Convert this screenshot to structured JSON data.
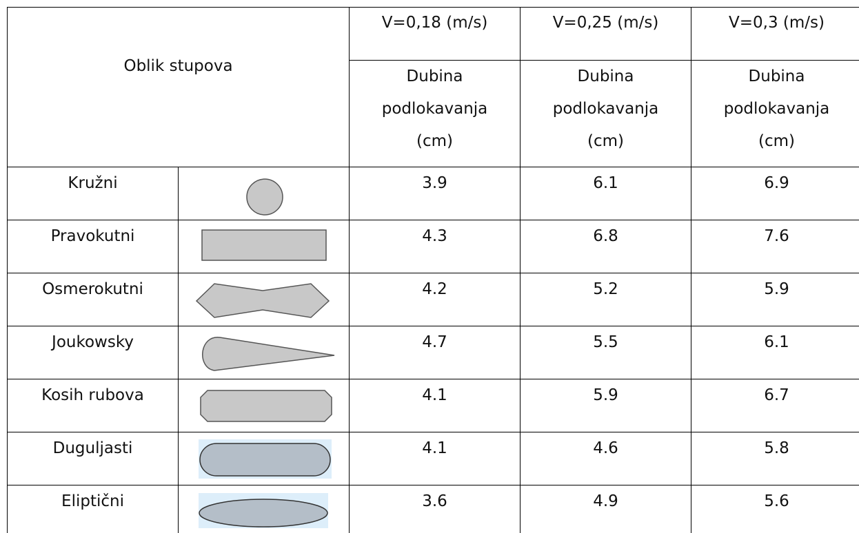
{
  "table": {
    "header": {
      "shape_column": "Oblik stupova",
      "velocities": [
        "V=0,18 (m/s)",
        "V=0,25 (m/s)",
        "V=0,3 (m/s)"
      ],
      "measure": [
        "Dubina podlokavanja (cm)",
        "Dubina podlokavanja (cm)",
        "Dubina podlokavanja (cm)"
      ]
    },
    "rows": [
      {
        "name": "Kružni",
        "values": [
          3.9,
          6.1,
          6.9
        ]
      },
      {
        "name": "Pravokutni",
        "values": [
          4.3,
          6.8,
          7.6
        ]
      },
      {
        "name": "Osmerokutni",
        "values": [
          4.2,
          5.2,
          5.9
        ]
      },
      {
        "name": "Joukowsky",
        "values": [
          4.7,
          5.5,
          6.1
        ]
      },
      {
        "name": "Kosih rubova",
        "values": [
          4.1,
          5.9,
          6.7
        ]
      },
      {
        "name": "Duguljasti",
        "values": [
          4.1,
          4.6,
          5.8
        ]
      },
      {
        "name": "Eliptični",
        "values": [
          3.6,
          4.9,
          5.6
        ]
      }
    ]
  }
}
